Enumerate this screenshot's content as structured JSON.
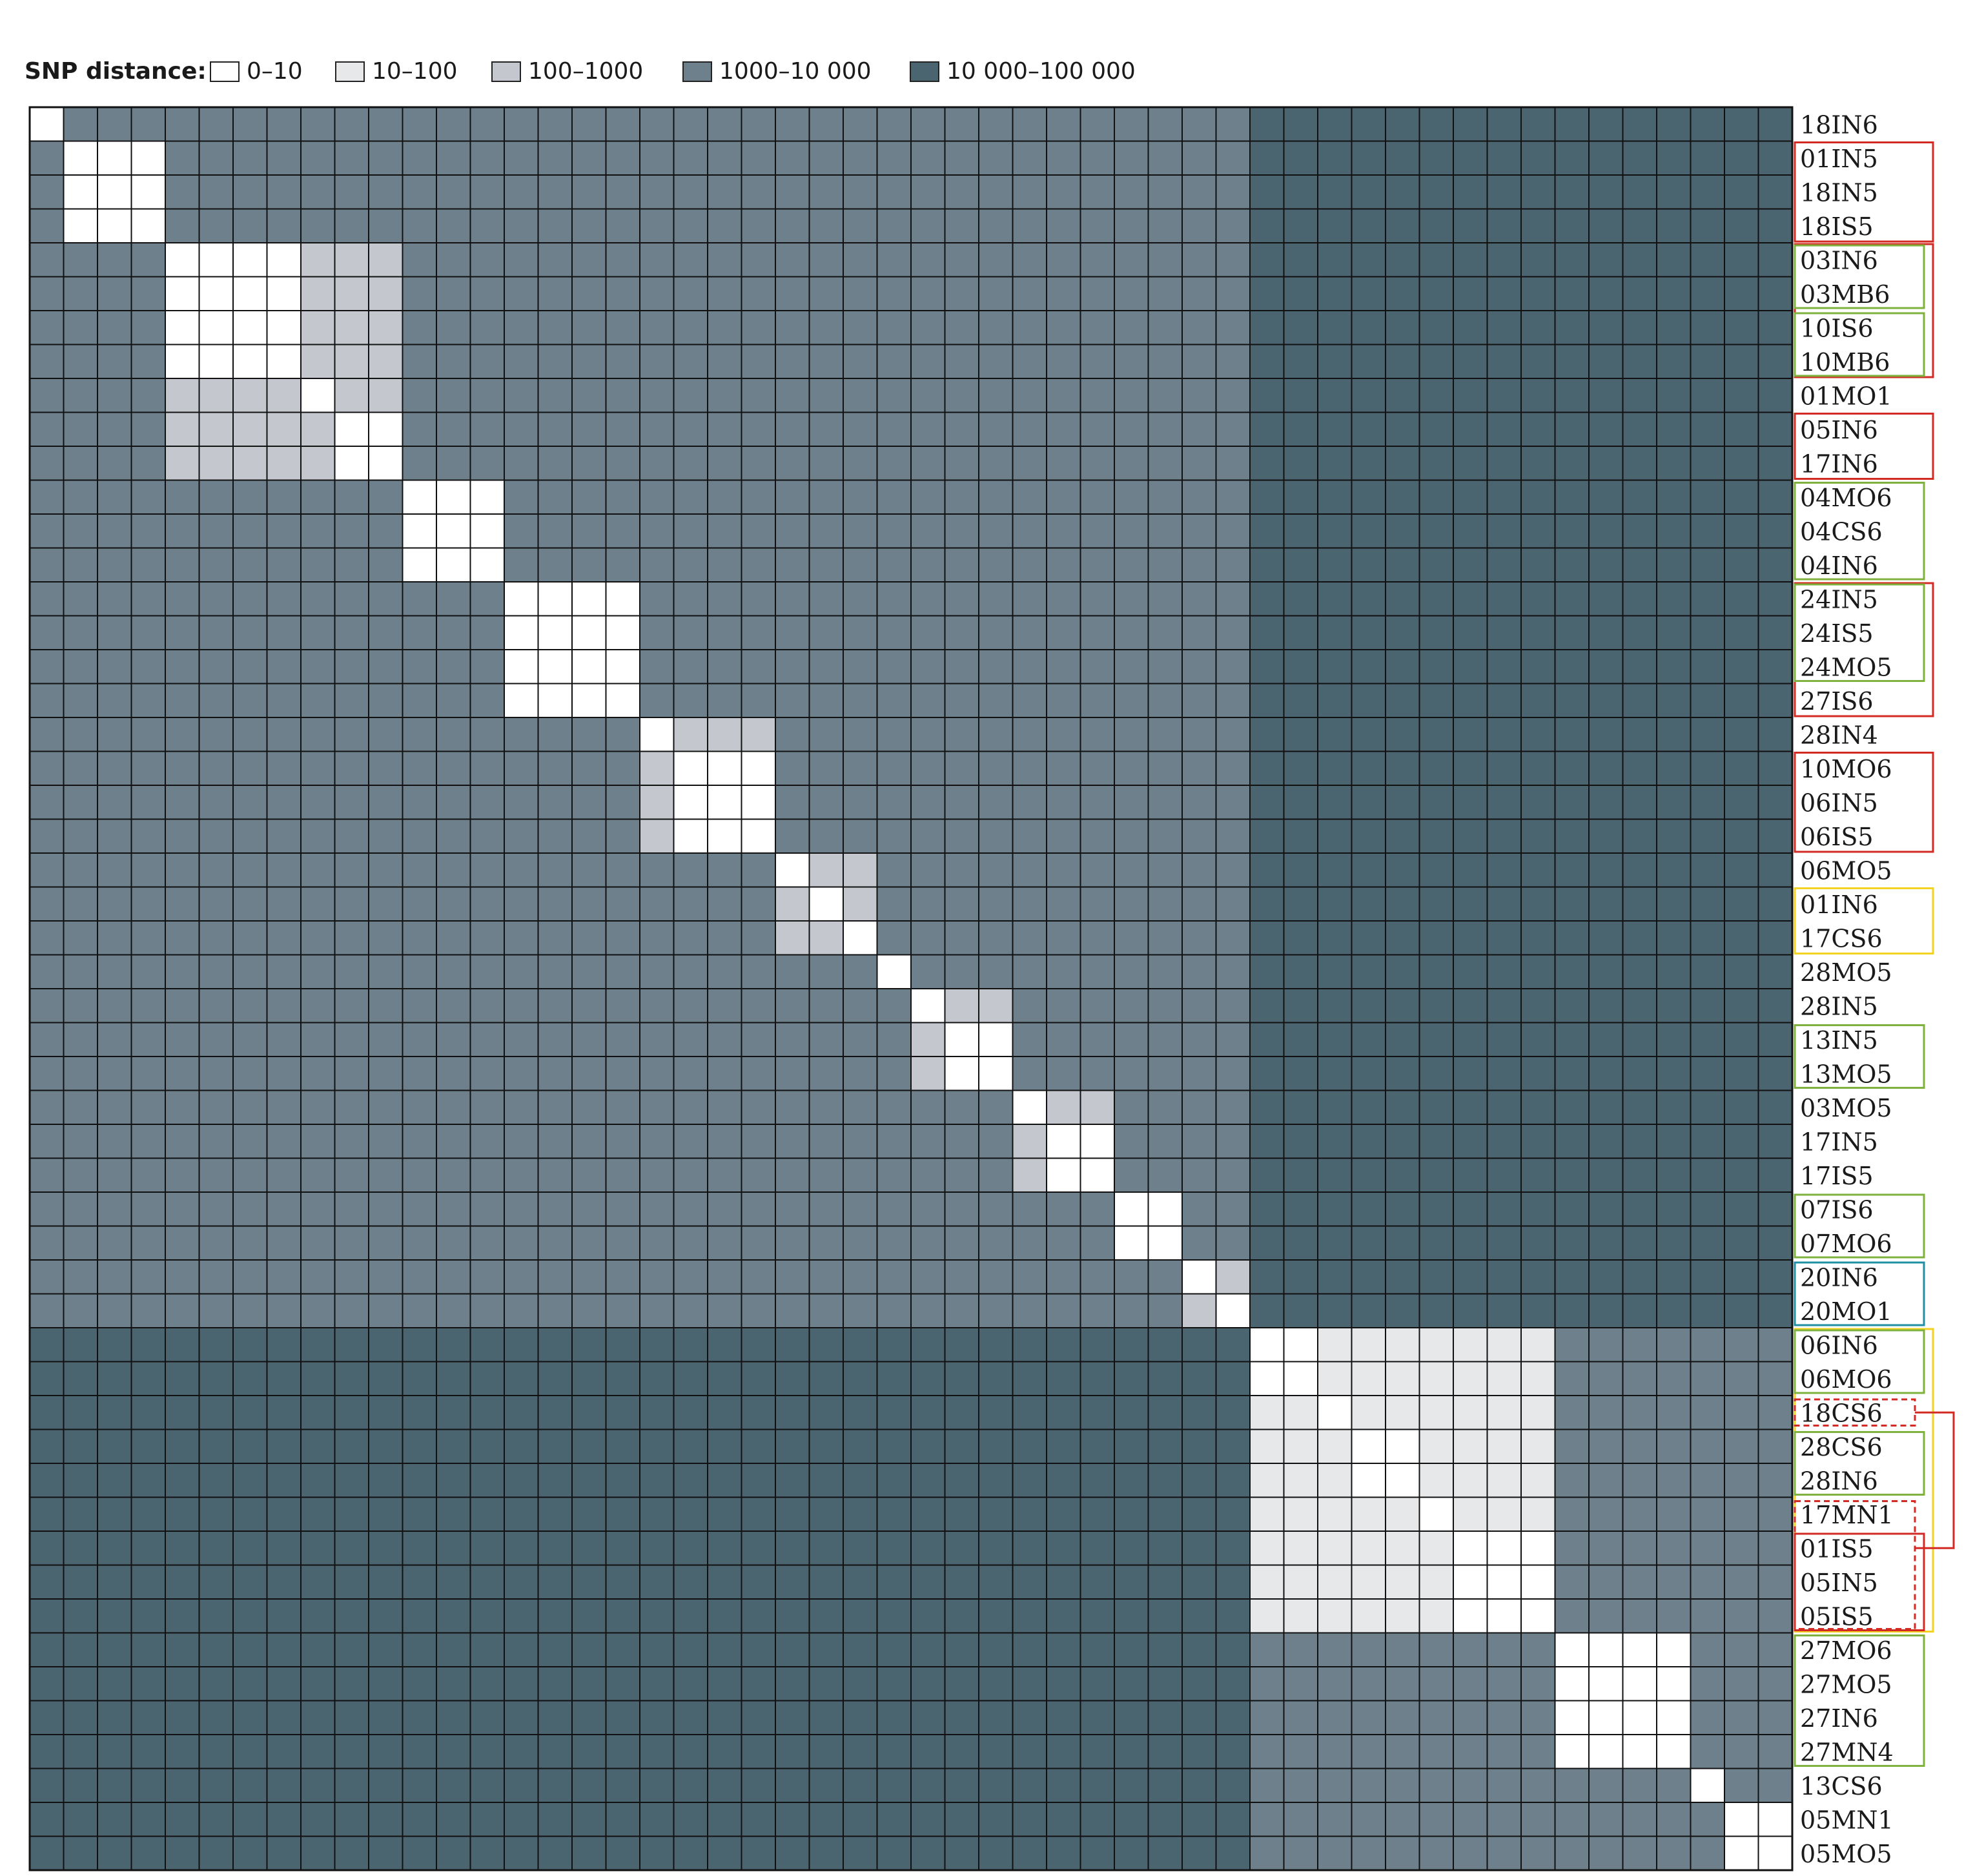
{
  "legend": {
    "title": "SNP distance:",
    "items": [
      {
        "label": "0–10",
        "color": "#ffffff"
      },
      {
        "label": "10–100",
        "color": "#e6e8ea"
      },
      {
        "label": "100–1000",
        "color": "#c4c8ce"
      },
      {
        "label": "1000–10 000",
        "color": "#6d808c"
      },
      {
        "label": "10 000–100 000",
        "color": "#4a6470"
      }
    ]
  },
  "chart_data": {
    "type": "heatmap",
    "title": "",
    "value_label": "SNP distance",
    "legend_position": "top-left",
    "labels": [
      "18IN6",
      "01IN5",
      "18IN5",
      "18IS5",
      "03IN6",
      "03MB6",
      "10IS6",
      "10MB6",
      "01MO1",
      "05IN6",
      "17IN6",
      "04MO6",
      "04CS6",
      "04IN6",
      "24IN5",
      "24IS5",
      "24MO5",
      "27IS6",
      "28IN4",
      "10MO6",
      "06IN5",
      "06IS5",
      "06MO5",
      "01IN6",
      "17CS6",
      "28MO5",
      "28IN5",
      "13IN5",
      "13MO5",
      "03MO5",
      "17IN5",
      "17IS5",
      "07IS6",
      "07MO6",
      "20IN6",
      "20MO1",
      "06IN6",
      "06MO6",
      "18CS6",
      "28CS6",
      "28IN6",
      "17MN1",
      "01IS5",
      "05IN5",
      "05IS5",
      "27MO6",
      "27MO5",
      "27IN6",
      "27MN4",
      "13CS6",
      "05MN1",
      "05MO5"
    ],
    "bins": [
      "0–10",
      "10–100",
      "100–1000",
      "1000–10 000",
      "10 000–100 000"
    ],
    "major_groups": [
      {
        "start": 0,
        "end": 35
      },
      {
        "start": 36,
        "end": 51
      }
    ],
    "default_bins": {
      "within_group": 3,
      "between_groups": 4
    },
    "blocks": [
      {
        "members": [
          0
        ],
        "matrix": [
          [
            0
          ]
        ]
      },
      {
        "members": [
          1,
          2,
          3
        ],
        "matrix": [
          [
            0,
            0,
            0
          ],
          [
            0,
            0,
            0
          ],
          [
            0,
            0,
            0
          ]
        ]
      },
      {
        "members": [
          4,
          5,
          6,
          7,
          8,
          9,
          10
        ],
        "matrix": [
          [
            0,
            0,
            0,
            0,
            2,
            2,
            2
          ],
          [
            0,
            0,
            0,
            0,
            2,
            2,
            2
          ],
          [
            0,
            0,
            0,
            0,
            2,
            2,
            2
          ],
          [
            0,
            0,
            0,
            0,
            2,
            2,
            2
          ],
          [
            2,
            2,
            2,
            2,
            0,
            2,
            2
          ],
          [
            2,
            2,
            2,
            2,
            2,
            0,
            0
          ],
          [
            2,
            2,
            2,
            2,
            2,
            0,
            0
          ]
        ]
      },
      {
        "members": [
          11,
          12,
          13
        ],
        "matrix": [
          [
            0,
            0,
            0
          ],
          [
            0,
            0,
            0
          ],
          [
            0,
            0,
            0
          ]
        ]
      },
      {
        "members": [
          14,
          15,
          16,
          17
        ],
        "matrix": [
          [
            0,
            0,
            0,
            0
          ],
          [
            0,
            0,
            0,
            0
          ],
          [
            0,
            0,
            0,
            0
          ],
          [
            0,
            0,
            0,
            0
          ]
        ]
      },
      {
        "members": [
          18,
          19,
          20,
          21
        ],
        "matrix": [
          [
            0,
            2,
            2,
            2
          ],
          [
            2,
            0,
            0,
            0
          ],
          [
            2,
            0,
            0,
            0
          ],
          [
            2,
            0,
            0,
            0
          ]
        ]
      },
      {
        "members": [
          22,
          23,
          24
        ],
        "matrix": [
          [
            0,
            2,
            2
          ],
          [
            2,
            0,
            2
          ],
          [
            2,
            2,
            0
          ]
        ]
      },
      {
        "members": [
          25
        ],
        "matrix": [
          [
            0
          ]
        ]
      },
      {
        "members": [
          26,
          27,
          28
        ],
        "matrix": [
          [
            0,
            2,
            2
          ],
          [
            2,
            0,
            0
          ],
          [
            2,
            0,
            0
          ]
        ]
      },
      {
        "members": [
          29,
          30,
          31
        ],
        "matrix": [
          [
            0,
            2,
            2
          ],
          [
            2,
            0,
            0
          ],
          [
            2,
            0,
            0
          ]
        ]
      },
      {
        "members": [
          32,
          33
        ],
        "matrix": [
          [
            0,
            0
          ],
          [
            0,
            0
          ]
        ]
      },
      {
        "members": [
          34,
          35
        ],
        "matrix": [
          [
            0,
            2
          ],
          [
            2,
            0
          ]
        ]
      },
      {
        "members": [
          36,
          37,
          38,
          39,
          40,
          41,
          42,
          43,
          44
        ],
        "matrix": [
          [
            0,
            0,
            1,
            1,
            1,
            1,
            1,
            1,
            1
          ],
          [
            0,
            0,
            1,
            1,
            1,
            1,
            1,
            1,
            1
          ],
          [
            1,
            1,
            0,
            1,
            1,
            1,
            1,
            1,
            1
          ],
          [
            1,
            1,
            1,
            0,
            0,
            1,
            1,
            1,
            1
          ],
          [
            1,
            1,
            1,
            0,
            0,
            1,
            1,
            1,
            1
          ],
          [
            1,
            1,
            1,
            1,
            1,
            0,
            1,
            1,
            1
          ],
          [
            1,
            1,
            1,
            1,
            1,
            1,
            0,
            0,
            0
          ],
          [
            1,
            1,
            1,
            1,
            1,
            1,
            0,
            0,
            0
          ],
          [
            1,
            1,
            1,
            1,
            1,
            1,
            0,
            0,
            0
          ]
        ]
      },
      {
        "members": [
          45,
          46,
          47,
          48
        ],
        "matrix": [
          [
            0,
            0,
            0,
            0
          ],
          [
            0,
            0,
            0,
            0
          ],
          [
            0,
            0,
            0,
            0
          ],
          [
            0,
            0,
            0,
            0
          ]
        ]
      },
      {
        "members": [
          49
        ],
        "matrix": [
          [
            0
          ]
        ]
      },
      {
        "members": [
          50,
          51
        ],
        "matrix": [
          [
            0,
            0
          ],
          [
            0,
            0
          ]
        ]
      }
    ],
    "cluster_boxes": [
      {
        "rows": [
          1,
          3
        ],
        "color": "#d42a24",
        "style": "solid",
        "inset": 0
      },
      {
        "rows": [
          4,
          7
        ],
        "color": "#d42a24",
        "style": "solid",
        "inset": 0
      },
      {
        "rows": [
          4,
          5
        ],
        "color": "#7fb23c",
        "style": "solid",
        "inset": 1
      },
      {
        "rows": [
          6,
          7
        ],
        "color": "#7fb23c",
        "style": "solid",
        "inset": 1
      },
      {
        "rows": [
          9,
          10
        ],
        "color": "#d42a24",
        "style": "solid",
        "inset": 0
      },
      {
        "rows": [
          11,
          13
        ],
        "color": "#7fb23c",
        "style": "solid",
        "inset": 1
      },
      {
        "rows": [
          14,
          17
        ],
        "color": "#d42a24",
        "style": "solid",
        "inset": 0
      },
      {
        "rows": [
          14,
          16
        ],
        "color": "#7fb23c",
        "style": "solid",
        "inset": 1
      },
      {
        "rows": [
          19,
          21
        ],
        "color": "#d42a24",
        "style": "solid",
        "inset": 0
      },
      {
        "rows": [
          23,
          24
        ],
        "color": "#f2d321",
        "style": "solid",
        "inset": 0
      },
      {
        "rows": [
          27,
          28
        ],
        "color": "#7fb23c",
        "style": "solid",
        "inset": 1
      },
      {
        "rows": [
          32,
          33
        ],
        "color": "#7fb23c",
        "style": "solid",
        "inset": 1
      },
      {
        "rows": [
          34,
          35
        ],
        "color": "#1f8fa3",
        "style": "solid",
        "inset": 1
      },
      {
        "rows": [
          36,
          44
        ],
        "color": "#f2d321",
        "style": "solid",
        "inset": 0
      },
      {
        "rows": [
          36,
          37
        ],
        "color": "#7fb23c",
        "style": "solid",
        "inset": 1
      },
      {
        "rows": [
          38,
          38
        ],
        "color": "#d42a24",
        "style": "dashed",
        "inset": 2
      },
      {
        "rows": [
          39,
          40
        ],
        "color": "#7fb23c",
        "style": "solid",
        "inset": 1
      },
      {
        "rows": [
          41,
          44
        ],
        "color": "#d42a24",
        "style": "dashed",
        "inset": 2
      },
      {
        "rows": [
          42,
          44
        ],
        "color": "#d42a24",
        "style": "solid",
        "inset": 1
      },
      {
        "rows": [
          45,
          48
        ],
        "color": "#7fb23c",
        "style": "solid",
        "inset": 1
      }
    ],
    "link_brackets": [
      {
        "from_row": 38,
        "to_row": 42,
        "color": "#d42a24"
      }
    ]
  }
}
